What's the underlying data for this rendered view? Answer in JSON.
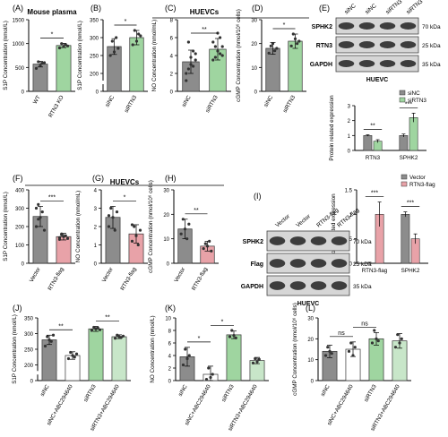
{
  "colors": {
    "gray": "#8c8c8c",
    "green": "#9fd5a0",
    "pink": "#e8a2a8",
    "axis": "#000000",
    "blot_bg": "#d6d6d6",
    "band": "#222222"
  },
  "chart_data": [
    {
      "id": "A",
      "type": "bar",
      "panel_label": "(A)",
      "title": "Mouse plasma",
      "categories": [
        "WT",
        "RTN3 KO"
      ],
      "values": [
        570,
        960
      ],
      "errors": [
        60,
        45
      ],
      "ylabel": "S1P Concentration (nmol/L)",
      "ylim": [
        0,
        1500
      ],
      "yticks": [
        0,
        500,
        1000,
        1500
      ],
      "colors": [
        "gray",
        "green"
      ],
      "points": [
        [
          480,
          620,
          540,
          590,
          600
        ],
        [
          910,
          1000,
          940,
          980,
          950
        ]
      ],
      "sig": [
        {
          "a": 0,
          "b": 1,
          "label": "*"
        }
      ]
    },
    {
      "id": "B",
      "type": "bar",
      "panel_label": "(B)",
      "title": "",
      "categories": [
        "siNC",
        "siRTN3"
      ],
      "values": [
        275,
        300
      ],
      "errors": [
        22,
        20
      ],
      "ylabel": "S1P Concentration (nmol/L)",
      "ylim": [
        0,
        350
      ],
      "ybreak": true,
      "yticks": [
        0,
        200,
        250,
        300,
        350
      ],
      "colors": [
        "gray",
        "green"
      ],
      "points": [
        [
          250,
          290,
          260,
          300,
          270
        ],
        [
          280,
          320,
          290,
          310,
          305
        ]
      ],
      "sig": [
        {
          "a": 0,
          "b": 1,
          "label": "*"
        }
      ]
    },
    {
      "id": "C",
      "type": "bar",
      "panel_label": "(C)",
      "title": "HUEVCs",
      "categories": [
        "siNC",
        "siRTN3"
      ],
      "values": [
        3.3,
        4.7
      ],
      "errors": [
        1.3,
        1.2
      ],
      "ylabel": "NO Concentration (nmol/mL)",
      "ylim": [
        0,
        8
      ],
      "yticks": [
        0,
        2,
        4,
        6,
        8
      ],
      "colors": [
        "gray",
        "green"
      ],
      "points": [
        [
          1.2,
          2.5,
          3.0,
          4.5,
          3.5,
          2.0,
          5.5,
          3.8,
          2.8,
          4.2
        ],
        [
          3.5,
          5.0,
          4.5,
          6.0,
          4.0,
          5.5,
          3.8,
          6.5,
          4.2,
          5.0
        ]
      ],
      "sig": [
        {
          "a": 0,
          "b": 1,
          "label": "**"
        }
      ]
    },
    {
      "id": "D",
      "type": "bar",
      "panel_label": "(D)",
      "title": "",
      "categories": [
        "siNC",
        "siRTN3"
      ],
      "values": [
        18,
        21
      ],
      "errors": [
        2.5,
        3
      ],
      "ylabel": "cGMP Concentration (nmol/10⁶ cells)",
      "ylim": [
        0,
        30
      ],
      "yticks": [
        0,
        10,
        20,
        30
      ],
      "colors": [
        "gray",
        "green"
      ],
      "points": [
        [
          16,
          19,
          20,
          17,
          18
        ],
        [
          19,
          24,
          22,
          20,
          21
        ]
      ],
      "sig": [
        {
          "a": 0,
          "b": 1,
          "label": "*"
        }
      ]
    },
    {
      "id": "E",
      "type": "bar",
      "panel_label": "",
      "title": "",
      "categories": [
        "RTN3",
        "SPHK2"
      ],
      "series": [
        {
          "name": "siNC",
          "values": [
            1.0,
            1.0
          ],
          "errors": [
            0.05,
            0.1
          ],
          "color": "gray"
        },
        {
          "name": "siRTN3",
          "values": [
            0.62,
            2.2
          ],
          "errors": [
            0.1,
            0.3
          ],
          "color": "green"
        }
      ],
      "ylabel": "Protein related expression",
      "ylim": [
        0,
        3
      ],
      "yticks": [
        0,
        1,
        2,
        3
      ],
      "legend": "top-right",
      "sig": [
        {
          "g": 0,
          "label": "**"
        },
        {
          "g": 1,
          "label": "***"
        }
      ]
    },
    {
      "id": "F",
      "type": "bar",
      "panel_label": "(F)",
      "title": "",
      "categories": [
        "Vector",
        "RTN3-flag"
      ],
      "values": [
        255,
        145
      ],
      "errors": [
        55,
        18
      ],
      "ylabel": "S1P Concentration (nmol/L)",
      "ylim": [
        0,
        400
      ],
      "yticks": [
        0,
        100,
        200,
        300,
        400
      ],
      "colors": [
        "gray",
        "pink"
      ],
      "points": [
        [
          200,
          320,
          250,
          280,
          180,
          300,
          240
        ],
        [
          130,
          160,
          145,
          150,
          135,
          140,
          155
        ]
      ],
      "sig": [
        {
          "a": 0,
          "b": 1,
          "label": "***"
        }
      ]
    },
    {
      "id": "G",
      "type": "bar",
      "panel_label": "(G)",
      "title": "HUEVCs",
      "categories": [
        "Vector",
        "RTN3-flag"
      ],
      "values": [
        2.5,
        1.6
      ],
      "errors": [
        0.6,
        0.5
      ],
      "ylabel": "NO Concentration (nmol/mL)",
      "ylim": [
        0,
        4
      ],
      "yticks": [
        0,
        1,
        2,
        3,
        4
      ],
      "colors": [
        "gray",
        "pink"
      ],
      "points": [
        [
          2.0,
          3.0,
          2.5,
          1.8,
          2.8,
          2.6
        ],
        [
          1.2,
          2.0,
          1.5,
          1.0,
          1.8,
          2.1
        ]
      ],
      "sig": [
        {
          "a": 0,
          "b": 1,
          "label": "*"
        }
      ]
    },
    {
      "id": "H",
      "type": "bar",
      "panel_label": "(H)",
      "title": "",
      "categories": [
        "Vector",
        "RTN3-flag"
      ],
      "values": [
        14,
        7
      ],
      "errors": [
        4,
        2
      ],
      "ylabel": "cGMP Concentration (nmol/10⁶ cells)",
      "ylim": [
        0,
        30
      ],
      "yticks": [
        0,
        10,
        20,
        30
      ],
      "colors": [
        "gray",
        "pink"
      ],
      "points": [
        [
          12,
          18,
          14,
          10,
          16
        ],
        [
          6,
          8,
          7,
          9,
          5
        ]
      ],
      "sig": [
        {
          "a": 0,
          "b": 1,
          "label": "**"
        }
      ]
    },
    {
      "id": "I",
      "type": "bar",
      "panel_label": "",
      "title": "",
      "categories": [
        "RTN3-flag",
        "SPHK2"
      ],
      "series": [
        {
          "name": "Vector",
          "values": [
            0.0,
            1.0
          ],
          "errors": [
            0.02,
            0.05
          ],
          "color": "gray"
        },
        {
          "name": "RTN3-flag",
          "values": [
            1.0,
            0.5
          ],
          "errors": [
            0.25,
            0.1
          ],
          "color": "pink"
        }
      ],
      "ylabel": "Protein related expression",
      "ylim": [
        0,
        1.5
      ],
      "yticks": [
        0.0,
        0.5,
        1.0,
        1.5
      ],
      "legend": "top-right",
      "sig": [
        {
          "g": 0,
          "label": "***"
        },
        {
          "g": 1,
          "label": "***"
        }
      ]
    },
    {
      "id": "J",
      "type": "bar",
      "panel_label": "(J)",
      "title": "",
      "categories": [
        "siNC",
        "siNC+ABC294640",
        "siRTN3",
        "siRTN3+ABC294640"
      ],
      "values": [
        280,
        230,
        315,
        290
      ],
      "errors": [
        15,
        12,
        8,
        6
      ],
      "ylabel": "S1P Concentration (nmol/L)",
      "ylim": [
        0,
        350
      ],
      "ybreak": true,
      "yticks": [
        0,
        200,
        250,
        300,
        350
      ],
      "colors": [
        "gray",
        "white",
        "green",
        "green_light"
      ],
      "points": [
        [
          260,
          290,
          280,
          275,
          295
        ],
        [
          220,
          240,
          230,
          225,
          235
        ],
        [
          310,
          320,
          315,
          318,
          312
        ],
        [
          285,
          295,
          290,
          288,
          292
        ]
      ],
      "sig": [
        {
          "a": 0,
          "b": 1,
          "label": "**"
        },
        {
          "a": 2,
          "b": 3,
          "label": "**"
        }
      ]
    },
    {
      "id": "K",
      "type": "bar",
      "panel_label": "(K)",
      "title": "",
      "categories": [
        "siNC",
        "siNC+ABC294640",
        "siRTN3",
        "siRTN3+ABC294640"
      ],
      "values": [
        3.8,
        1.0,
        7.3,
        3.2
      ],
      "errors": [
        1.5,
        1.3,
        0.6,
        0.5
      ],
      "ylabel": "NO Concentration (nmol/L)",
      "ylim": [
        0,
        10
      ],
      "yticks": [
        0,
        2,
        4,
        6,
        8,
        10
      ],
      "colors": [
        "gray",
        "white",
        "green",
        "green_light"
      ],
      "points": [
        [
          2.5,
          5.0,
          3.5,
          4.0
        ],
        [
          0.2,
          2.0,
          0.5,
          1.0
        ],
        [
          7.0,
          8.0,
          7.2,
          6.8
        ],
        [
          2.8,
          3.5,
          3.0,
          3.4
        ]
      ],
      "sig": [
        {
          "a": 0,
          "b": 1,
          "label": "*"
        },
        {
          "a": 1,
          "b": 2,
          "label": "*"
        }
      ]
    },
    {
      "id": "L",
      "type": "bar",
      "panel_label": "(L)",
      "title": "",
      "categories": [
        "siNC",
        "siNC+ABC294640",
        "siRTN3",
        "siRTN3+ABC294640"
      ],
      "values": [
        14,
        15,
        20,
        19
      ],
      "errors": [
        3,
        3.5,
        3,
        3.5
      ],
      "ylabel": "cGMP Concentration (nmol/10⁶ cells)",
      "ylim": [
        0,
        30
      ],
      "yticks": [
        0,
        10,
        20,
        30
      ],
      "colors": [
        "gray",
        "white",
        "green",
        "green_light"
      ],
      "points": [
        [
          12,
          16,
          14,
          13
        ],
        [
          14,
          18,
          12,
          16
        ],
        [
          18,
          24,
          20,
          19
        ],
        [
          16,
          22,
          18,
          20
        ]
      ],
      "sig": [
        {
          "a": 0,
          "b": 1,
          "label": "ns"
        },
        {
          "a": 1,
          "b": 2,
          "label": "ns"
        }
      ]
    }
  ],
  "blots": {
    "E": {
      "panel_label": "(E)",
      "lanes": [
        "siNC",
        "siNC",
        "siRTN3",
        "siRTN3"
      ],
      "rows": [
        {
          "label": "SPHK2",
          "mw": "70 kDa"
        },
        {
          "label": "RTN3",
          "mw": "25 kDa"
        },
        {
          "label": "GAPDH",
          "mw": "35 kDa"
        }
      ],
      "cell": "HUEVC"
    },
    "I": {
      "panel_label": "(I)",
      "lanes": [
        "Vector",
        "Vector",
        "RTN3-flag",
        "RTN3-flag"
      ],
      "rows": [
        {
          "label": "SPHK2",
          "mw": "70 kDa"
        },
        {
          "label": "Flag",
          "mw": "25 kDa"
        },
        {
          "label": "GAPDH",
          "mw": "35 kDa"
        }
      ],
      "cell": "HUEVC"
    }
  }
}
